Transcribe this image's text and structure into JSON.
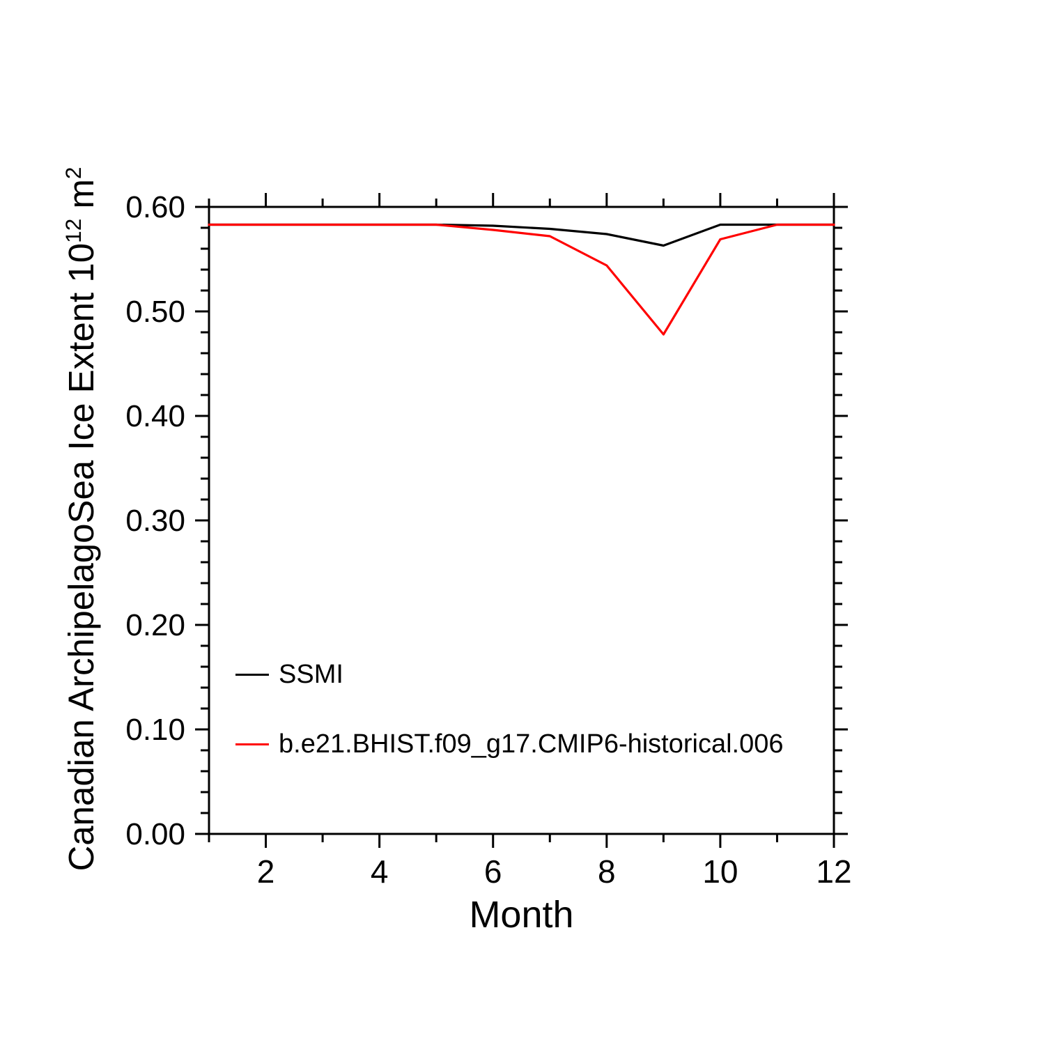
{
  "chart_data": {
    "type": "line",
    "title": "",
    "xlabel": "Month",
    "ylabel": "Canadian ArchipelagoSea Ice Extent 10^12 m^2",
    "ylabel_parts": [
      {
        "text": "Canadian ArchipelagoSea Ice Extent 10"
      },
      {
        "sup": "12"
      },
      {
        "text": " m"
      },
      {
        "sup": "2"
      }
    ],
    "x": [
      1,
      2,
      3,
      4,
      5,
      6,
      7,
      8,
      9,
      10,
      11,
      12
    ],
    "series": [
      {
        "name": "SSMI",
        "color": "#000000",
        "values": [
          0.583,
          0.583,
          0.583,
          0.583,
          0.583,
          0.582,
          0.579,
          0.574,
          0.563,
          0.583,
          0.583,
          0.583
        ]
      },
      {
        "name": "b.e21.BHIST.f09_g17.CMIP6-historical.006",
        "color": "#ff0000",
        "values": [
          0.583,
          0.583,
          0.583,
          0.583,
          0.583,
          0.578,
          0.572,
          0.544,
          0.478,
          0.569,
          0.583,
          0.583
        ]
      }
    ],
    "xlim": [
      1,
      12
    ],
    "ylim": [
      0.0,
      0.6
    ],
    "x_major_ticks": [
      2,
      4,
      6,
      8,
      10,
      12
    ],
    "x_minor_ticks": [
      1,
      3,
      5,
      7,
      9,
      11
    ],
    "x_tick_labels": [
      "2",
      "4",
      "6",
      "8",
      "10",
      "12"
    ],
    "y_major_ticks": [
      0.0,
      0.1,
      0.2,
      0.3,
      0.4,
      0.5,
      0.6
    ],
    "y_tick_labels": [
      "0.00",
      "0.10",
      "0.20",
      "0.30",
      "0.40",
      "0.50",
      "0.60"
    ],
    "y_minor_step": 0.02,
    "grid": false,
    "legend_position": "inside-lower-left"
  }
}
